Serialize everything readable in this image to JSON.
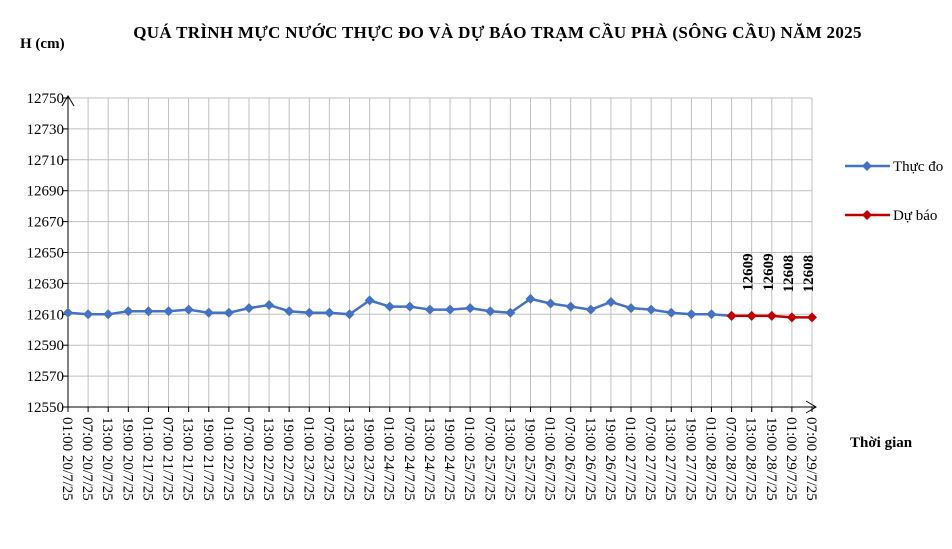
{
  "chart_data": {
    "type": "line",
    "title": "QUÁ TRÌNH  MỰC NƯỚC THỰC ĐO VÀ DỰ BÁO TRẠM CẦU PHÀ (SÔNG CẦU) NĂM 2025",
    "y_label": "H (cm)",
    "x_label": "Thời gian",
    "categories": [
      "01:00 20/7/25",
      "07:00 20/7/25",
      "13:00 20/7/25",
      "19:00 20/7/25",
      "01:00 21/7/25",
      "07:00 21/7/25",
      "13:00 21/7/25",
      "19:00 21/7/25",
      "01:00 22/7/25",
      "07:00 22/7/25",
      "13:00 22/7/25",
      "19:00 22/7/25",
      "01:00 23/7/25",
      "07:00 23/7/25",
      "13:00 23/7/25",
      "19:00 23/7/25",
      "01:00 24/7/25",
      "07:00 24/7/25",
      "13:00 24/7/25",
      "19:00 24/7/25",
      "01:00 25/7/25",
      "07:00 25/7/25",
      "13:00 25/7/25",
      "19:00 25/7/25",
      "01:00 26/7/25",
      "07:00 26/7/25",
      "13:00 26/7/25",
      "19:00 26/7/25",
      "01:00 27/7/25",
      "07:00 27/7/25",
      "13:00 27/7/25",
      "19:00 27/7/25",
      "01:00 28/7/25",
      "07:00 28/7/25",
      "13:00 28/7/25",
      "19:00 28/7/25",
      "01:00 29/7/25",
      "07:00 29/7/25"
    ],
    "series": [
      {
        "name": "Thực đo",
        "color": "#4472c4",
        "values": [
          12611,
          12610,
          12610,
          12612,
          12612,
          12612,
          12613,
          12611,
          12611,
          12614,
          12616,
          12612,
          12611,
          12611,
          12610,
          12619,
          12615,
          12615,
          12613,
          12613,
          12614,
          12612,
          12611,
          12620,
          12617,
          12615,
          12613,
          12618,
          12614,
          12613,
          12611,
          12610,
          12610,
          12609,
          null,
          null,
          null,
          null
        ]
      },
      {
        "name": "Dự báo",
        "color": "#c00000",
        "values": [
          null,
          null,
          null,
          null,
          null,
          null,
          null,
          null,
          null,
          null,
          null,
          null,
          null,
          null,
          null,
          null,
          null,
          null,
          null,
          null,
          null,
          null,
          null,
          null,
          null,
          null,
          null,
          null,
          null,
          null,
          null,
          null,
          null,
          12609,
          12609,
          12609,
          12608,
          12608
        ],
        "value_labels": [
          null,
          null,
          null,
          null,
          null,
          null,
          null,
          null,
          null,
          null,
          null,
          null,
          null,
          null,
          null,
          null,
          null,
          null,
          null,
          null,
          null,
          null,
          null,
          null,
          null,
          null,
          null,
          null,
          null,
          null,
          null,
          null,
          null,
          null,
          "12609",
          "12609",
          "12608",
          "12608"
        ]
      }
    ],
    "ylim": [
      12550,
      12750
    ],
    "yticks": [
      12550,
      12570,
      12590,
      12610,
      12630,
      12650,
      12670,
      12690,
      12710,
      12730,
      12750
    ],
    "grid": true,
    "legend": "right"
  }
}
